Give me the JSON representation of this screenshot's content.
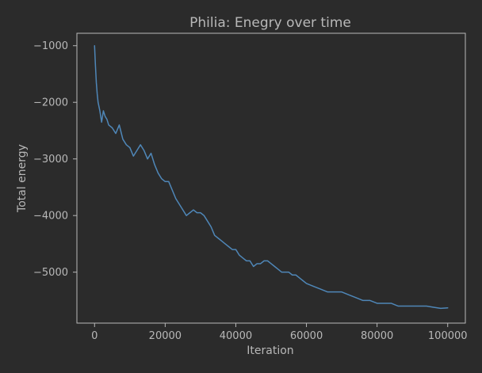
{
  "chart_data": {
    "type": "line",
    "title": "Philia: Enegry over time",
    "xlabel": "Iteration",
    "ylabel": "Total energy",
    "xlim": [
      -5000,
      105000
    ],
    "ylim": [
      -5900,
      -780
    ],
    "xticks": [
      0,
      20000,
      40000,
      60000,
      80000,
      100000
    ],
    "xtick_labels": [
      "0",
      "20000",
      "40000",
      "60000",
      "80000",
      "100000"
    ],
    "yticks": [
      -1000,
      -2000,
      -3000,
      -4000,
      -5000
    ],
    "ytick_labels": [
      "−1000",
      "−2000",
      "−3000",
      "−4000",
      "−5000"
    ],
    "grid": false,
    "legend": "none",
    "colors": {
      "background": "#2b2b2b",
      "axes": "#b8b8b8",
      "text": "#b8b8b8",
      "series": "#4f87b8"
    },
    "series": [
      {
        "x": [
          0,
          250,
          500,
          750,
          1000,
          1500,
          2000,
          2500,
          3000,
          3500,
          4000,
          5000,
          6000,
          7000,
          8000,
          9000,
          10000,
          11000,
          12000,
          13000,
          14000,
          15000,
          16000,
          17000,
          18000,
          19000,
          20000,
          21000,
          22000,
          23000,
          24000,
          25000,
          26000,
          27000,
          28000,
          29000,
          30000,
          31000,
          32000,
          33000,
          34000,
          35000,
          36000,
          37000,
          38000,
          39000,
          40000,
          41000,
          42000,
          43000,
          44000,
          45000,
          46000,
          47000,
          48000,
          49000,
          50000,
          51000,
          52000,
          53000,
          54000,
          55000,
          56000,
          57000,
          58000,
          59000,
          60000,
          62000,
          64000,
          66000,
          68000,
          70000,
          72000,
          74000,
          76000,
          78000,
          80000,
          82000,
          84000,
          86000,
          88000,
          90000,
          92000,
          94000,
          96000,
          98000,
          100000
        ],
        "y": [
          -1000,
          -1350,
          -1650,
          -1850,
          -2000,
          -2150,
          -2350,
          -2150,
          -2250,
          -2300,
          -2400,
          -2450,
          -2550,
          -2400,
          -2650,
          -2750,
          -2800,
          -2950,
          -2850,
          -2750,
          -2850,
          -3000,
          -2900,
          -3100,
          -3250,
          -3350,
          -3400,
          -3400,
          -3550,
          -3700,
          -3800,
          -3900,
          -4000,
          -3950,
          -3900,
          -3950,
          -3950,
          -4000,
          -4100,
          -4200,
          -4350,
          -4400,
          -4450,
          -4500,
          -4550,
          -4600,
          -4600,
          -4700,
          -4750,
          -4800,
          -4800,
          -4900,
          -4850,
          -4850,
          -4800,
          -4800,
          -4850,
          -4900,
          -4950,
          -5000,
          -5000,
          -5000,
          -5050,
          -5050,
          -5100,
          -5150,
          -5200,
          -5250,
          -5300,
          -5350,
          -5350,
          -5350,
          -5400,
          -5450,
          -5500,
          -5500,
          -5550,
          -5550,
          -5550,
          -5600,
          -5600,
          -5600,
          -5600,
          -5600,
          -5620,
          -5640,
          -5630
        ]
      }
    ]
  }
}
